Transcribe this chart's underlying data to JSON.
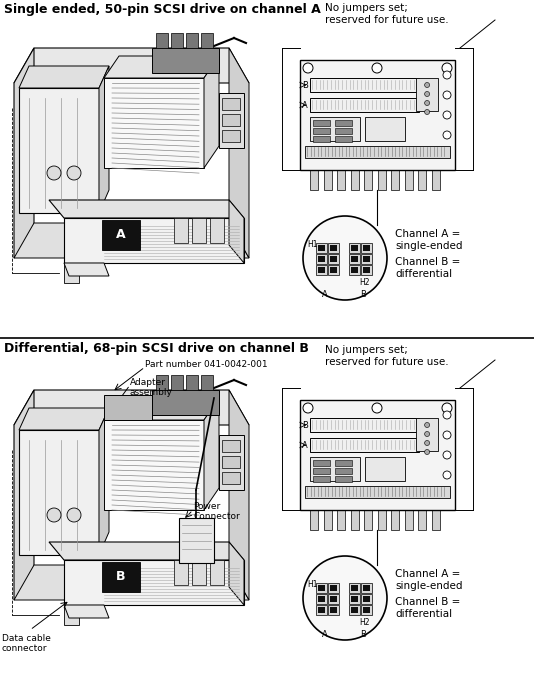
{
  "bg_color": "#ffffff",
  "line_color": "#000000",
  "figure_width": 5.34,
  "figure_height": 6.8,
  "dpi": 100,
  "top_title": "Single ended, 50-pin SCSI drive on channel A",
  "bottom_title": "Differential, 68-pin SCSI drive on channel B",
  "top_note": "No jumpers set;\nreserved for future use.",
  "bottom_note": "No jumpers set;\nreserved for future use.",
  "chan_a_label": "Channel A =\nsingle-ended",
  "chan_b_label": "Channel B =\ndifferential",
  "part_number_label": "Part number 041-0042-001",
  "adapter_label": "Adapter\nassembly",
  "power_label": "Power\nConnector",
  "data_cable_label": "Data cable\nconnector"
}
